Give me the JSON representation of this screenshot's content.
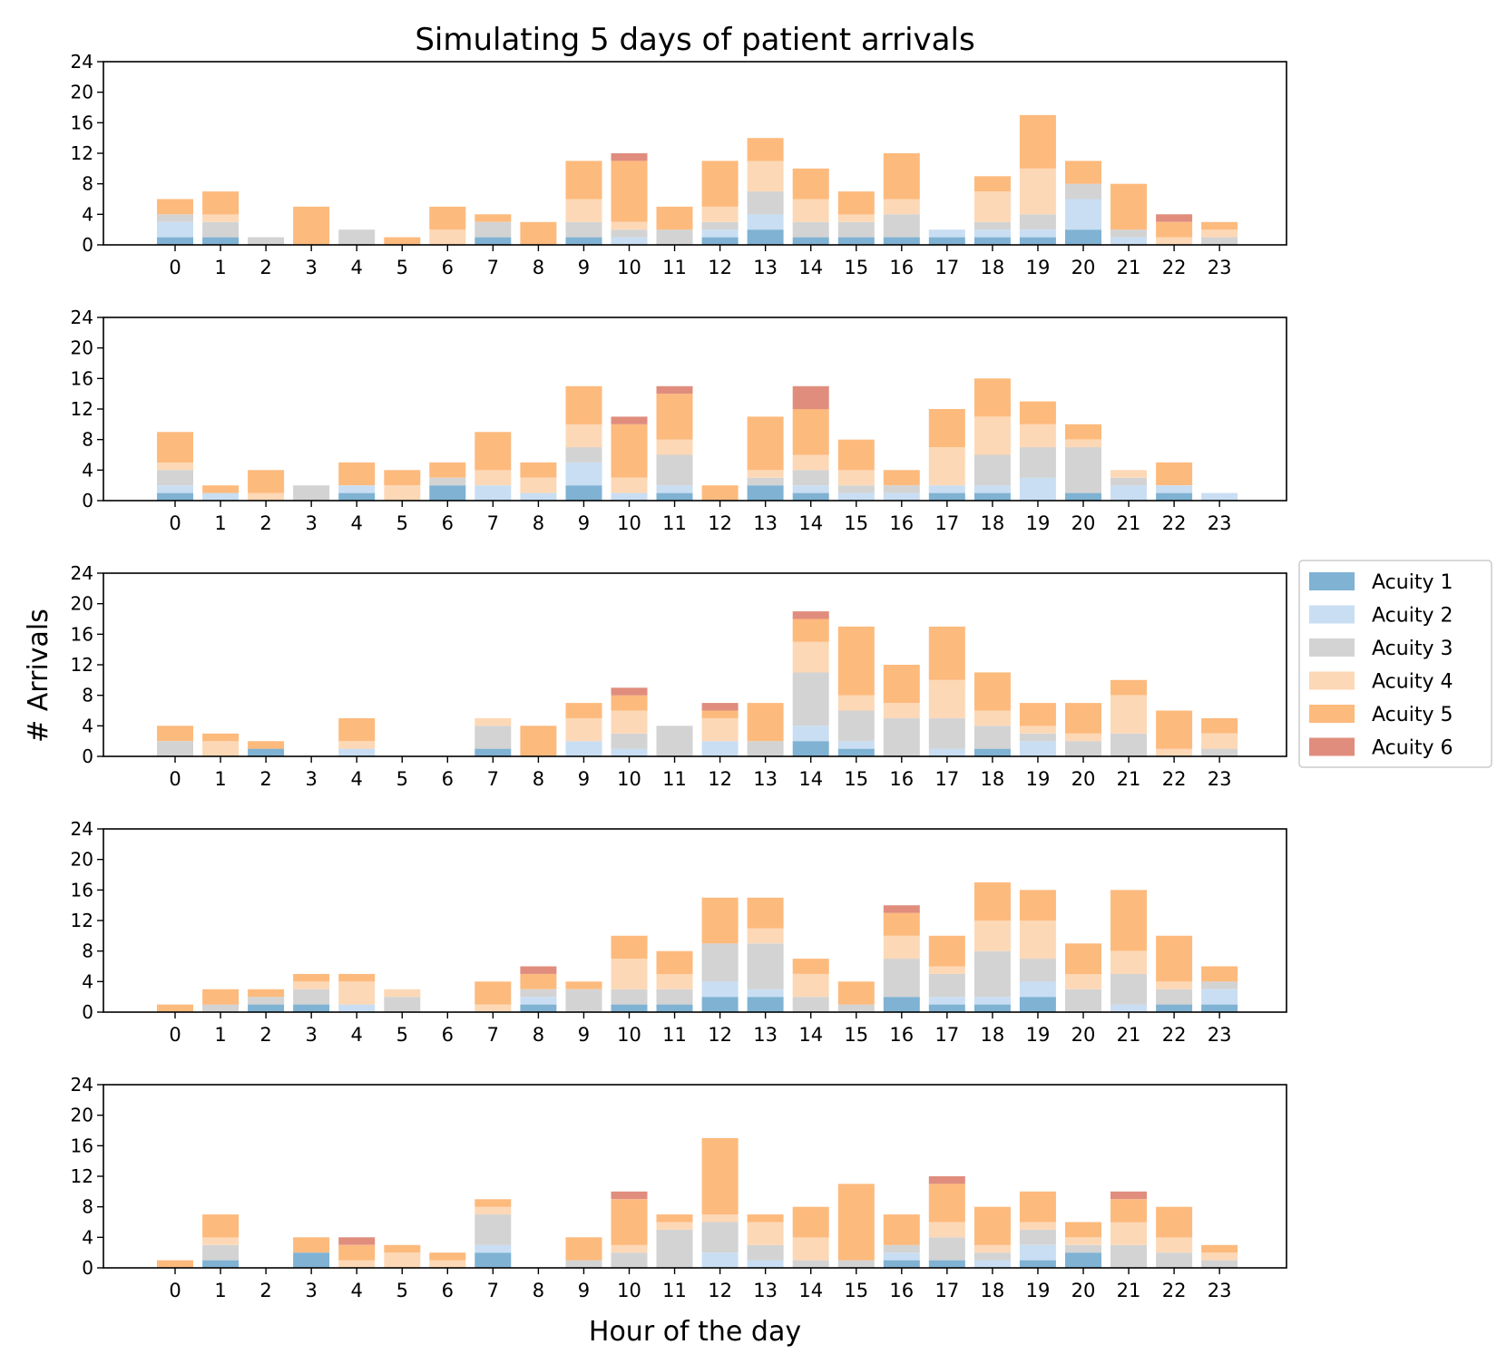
{
  "chart_data": {
    "type": "bar",
    "stacked": true,
    "title": "Simulating 5 days of patient arrivals",
    "xlabel": "Hour of the day",
    "ylabel": "# Arrivals",
    "ylim": [
      0,
      24
    ],
    "yticks": [
      0,
      4,
      8,
      12,
      16,
      20,
      24
    ],
    "legend_position": "right",
    "categories": [
      "0",
      "1",
      "2",
      "3",
      "4",
      "5",
      "6",
      "7",
      "8",
      "9",
      "10",
      "11",
      "12",
      "13",
      "14",
      "15",
      "16",
      "17",
      "18",
      "19",
      "20",
      "21",
      "22",
      "23"
    ],
    "legend": [
      {
        "name": "Acuity 1",
        "color": "#7fb2d3"
      },
      {
        "name": "Acuity 2",
        "color": "#c9def3"
      },
      {
        "name": "Acuity 3",
        "color": "#d3d3d3"
      },
      {
        "name": "Acuity 4",
        "color": "#fdd8b6"
      },
      {
        "name": "Acuity 5",
        "color": "#fdba7d"
      },
      {
        "name": "Acuity 6",
        "color": "#e08d7e"
      }
    ],
    "panels": [
      {
        "series": [
          {
            "name": "Acuity 1",
            "values": [
              1,
              1,
              0,
              0,
              0,
              0,
              0,
              1,
              0,
              1,
              0,
              0,
              1,
              2,
              1,
              1,
              1,
              1,
              1,
              1,
              2,
              0,
              0,
              0
            ]
          },
          {
            "name": "Acuity 2",
            "values": [
              2,
              0,
              0,
              0,
              0,
              0,
              0,
              0,
              0,
              0,
              1,
              0,
              1,
              2,
              0,
              0,
              0,
              1,
              1,
              1,
              4,
              1,
              0,
              0
            ]
          },
          {
            "name": "Acuity 3",
            "values": [
              1,
              2,
              1,
              0,
              2,
              0,
              0,
              2,
              0,
              2,
              1,
              2,
              1,
              3,
              2,
              2,
              3,
              0,
              1,
              2,
              2,
              1,
              0,
              1
            ]
          },
          {
            "name": "Acuity 4",
            "values": [
              0,
              1,
              0,
              0,
              0,
              0,
              2,
              0,
              0,
              3,
              1,
              0,
              2,
              4,
              3,
              1,
              2,
              0,
              4,
              6,
              0,
              0,
              1,
              1
            ]
          },
          {
            "name": "Acuity 5",
            "values": [
              2,
              3,
              0,
              5,
              0,
              1,
              3,
              1,
              3,
              5,
              8,
              3,
              6,
              3,
              4,
              3,
              6,
              0,
              2,
              7,
              3,
              6,
              2,
              1
            ]
          },
          {
            "name": "Acuity 6",
            "values": [
              0,
              0,
              0,
              0,
              0,
              0,
              0,
              0,
              0,
              0,
              1,
              0,
              0,
              0,
              0,
              0,
              0,
              0,
              0,
              0,
              0,
              0,
              1,
              0
            ]
          }
        ]
      },
      {
        "series": [
          {
            "name": "Acuity 1",
            "values": [
              1,
              0,
              0,
              0,
              1,
              0,
              2,
              0,
              0,
              2,
              0,
              1,
              0,
              2,
              1,
              0,
              0,
              1,
              1,
              0,
              1,
              0,
              1,
              0
            ]
          },
          {
            "name": "Acuity 2",
            "values": [
              1,
              1,
              0,
              0,
              1,
              0,
              0,
              2,
              1,
              3,
              1,
              1,
              0,
              0,
              1,
              1,
              1,
              1,
              1,
              3,
              0,
              2,
              1,
              1
            ]
          },
          {
            "name": "Acuity 3",
            "values": [
              2,
              0,
              0,
              2,
              0,
              0,
              1,
              0,
              0,
              2,
              0,
              4,
              0,
              1,
              2,
              1,
              1,
              0,
              4,
              4,
              6,
              1,
              0,
              0
            ]
          },
          {
            "name": "Acuity 4",
            "values": [
              1,
              0,
              1,
              0,
              0,
              2,
              0,
              2,
              2,
              3,
              2,
              2,
              0,
              1,
              2,
              2,
              0,
              5,
              5,
              3,
              1,
              1,
              0,
              0
            ]
          },
          {
            "name": "Acuity 5",
            "values": [
              4,
              1,
              3,
              0,
              3,
              2,
              2,
              5,
              2,
              5,
              7,
              6,
              2,
              7,
              6,
              4,
              2,
              5,
              5,
              3,
              2,
              0,
              3,
              0
            ]
          },
          {
            "name": "Acuity 6",
            "values": [
              0,
              0,
              0,
              0,
              0,
              0,
              0,
              0,
              0,
              0,
              1,
              1,
              0,
              0,
              3,
              0,
              0,
              0,
              0,
              0,
              0,
              0,
              0,
              0
            ]
          }
        ]
      },
      {
        "series": [
          {
            "name": "Acuity 1",
            "values": [
              0,
              0,
              1,
              0,
              0,
              0,
              0,
              1,
              0,
              0,
              0,
              0,
              0,
              0,
              2,
              1,
              0,
              0,
              1,
              0,
              0,
              0,
              0,
              0
            ]
          },
          {
            "name": "Acuity 2",
            "values": [
              0,
              0,
              0,
              0,
              1,
              0,
              0,
              0,
              0,
              2,
              1,
              0,
              2,
              0,
              2,
              1,
              0,
              1,
              0,
              2,
              0,
              0,
              0,
              0
            ]
          },
          {
            "name": "Acuity 3",
            "values": [
              2,
              0,
              0,
              0,
              0,
              0,
              0,
              3,
              0,
              0,
              2,
              4,
              0,
              2,
              7,
              4,
              5,
              4,
              3,
              1,
              2,
              3,
              0,
              1
            ]
          },
          {
            "name": "Acuity 4",
            "values": [
              0,
              2,
              0,
              0,
              1,
              0,
              0,
              1,
              0,
              3,
              3,
              0,
              3,
              0,
              4,
              2,
              2,
              5,
              2,
              1,
              1,
              5,
              1,
              2
            ]
          },
          {
            "name": "Acuity 5",
            "values": [
              2,
              1,
              1,
              0,
              3,
              0,
              0,
              0,
              4,
              2,
              2,
              0,
              1,
              5,
              3,
              9,
              5,
              7,
              5,
              3,
              4,
              2,
              5,
              2
            ]
          },
          {
            "name": "Acuity 6",
            "values": [
              0,
              0,
              0,
              0,
              0,
              0,
              0,
              0,
              0,
              0,
              1,
              0,
              1,
              0,
              1,
              0,
              0,
              0,
              0,
              0,
              0,
              0,
              0,
              0
            ]
          }
        ]
      },
      {
        "series": [
          {
            "name": "Acuity 1",
            "values": [
              0,
              0,
              1,
              1,
              0,
              0,
              0,
              0,
              1,
              0,
              1,
              1,
              2,
              2,
              0,
              0,
              2,
              1,
              1,
              2,
              0,
              0,
              1,
              1
            ]
          },
          {
            "name": "Acuity 2",
            "values": [
              0,
              0,
              0,
              0,
              1,
              0,
              0,
              0,
              1,
              0,
              0,
              0,
              2,
              1,
              0,
              0,
              0,
              1,
              1,
              2,
              0,
              1,
              0,
              2
            ]
          },
          {
            "name": "Acuity 3",
            "values": [
              0,
              1,
              1,
              2,
              0,
              2,
              0,
              0,
              1,
              3,
              2,
              2,
              5,
              6,
              2,
              1,
              5,
              3,
              6,
              3,
              3,
              4,
              2,
              1
            ]
          },
          {
            "name": "Acuity 4",
            "values": [
              0,
              0,
              0,
              1,
              3,
              1,
              0,
              1,
              0,
              0,
              4,
              2,
              0,
              2,
              3,
              0,
              3,
              1,
              4,
              5,
              2,
              3,
              1,
              0
            ]
          },
          {
            "name": "Acuity 5",
            "values": [
              1,
              2,
              1,
              1,
              1,
              0,
              0,
              3,
              2,
              1,
              3,
              3,
              6,
              4,
              2,
              3,
              3,
              4,
              5,
              4,
              4,
              8,
              6,
              2
            ]
          },
          {
            "name": "Acuity 6",
            "values": [
              0,
              0,
              0,
              0,
              0,
              0,
              0,
              0,
              1,
              0,
              0,
              0,
              0,
              0,
              0,
              0,
              1,
              0,
              0,
              0,
              0,
              0,
              0,
              0
            ]
          }
        ]
      },
      {
        "series": [
          {
            "name": "Acuity 1",
            "values": [
              0,
              1,
              0,
              2,
              0,
              0,
              0,
              2,
              0,
              0,
              0,
              0,
              0,
              0,
              0,
              0,
              1,
              1,
              0,
              1,
              2,
              0,
              0,
              0
            ]
          },
          {
            "name": "Acuity 2",
            "values": [
              0,
              0,
              0,
              0,
              0,
              0,
              0,
              1,
              0,
              0,
              0,
              0,
              2,
              1,
              0,
              0,
              1,
              0,
              1,
              2,
              0,
              0,
              0,
              0
            ]
          },
          {
            "name": "Acuity 3",
            "values": [
              0,
              2,
              0,
              0,
              0,
              0,
              0,
              4,
              0,
              1,
              2,
              5,
              4,
              2,
              1,
              1,
              1,
              3,
              1,
              2,
              1,
              3,
              2,
              1
            ]
          },
          {
            "name": "Acuity 4",
            "values": [
              0,
              1,
              0,
              0,
              1,
              2,
              1,
              1,
              0,
              0,
              1,
              1,
              1,
              3,
              3,
              0,
              0,
              2,
              1,
              1,
              1,
              3,
              2,
              1
            ]
          },
          {
            "name": "Acuity 5",
            "values": [
              1,
              3,
              0,
              2,
              2,
              1,
              1,
              1,
              0,
              3,
              6,
              1,
              10,
              1,
              4,
              10,
              4,
              5,
              5,
              4,
              2,
              3,
              4,
              1
            ]
          },
          {
            "name": "Acuity 6",
            "values": [
              0,
              0,
              0,
              0,
              1,
              0,
              0,
              0,
              0,
              0,
              1,
              0,
              0,
              0,
              0,
              0,
              0,
              1,
              0,
              0,
              0,
              1,
              0,
              0
            ]
          }
        ]
      }
    ]
  }
}
